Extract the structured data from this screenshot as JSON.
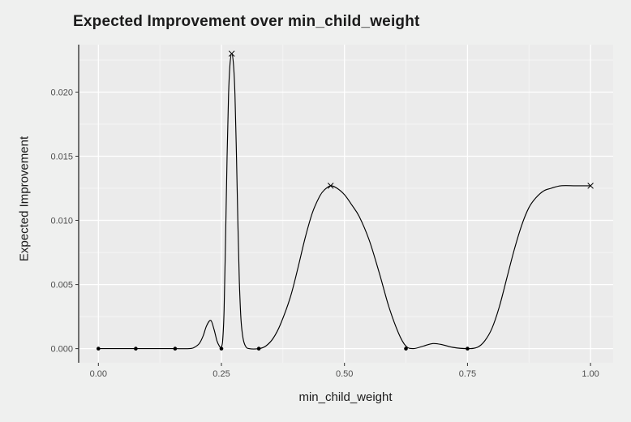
{
  "chart_data": {
    "type": "line",
    "title": "Expected Improvement over min_child_weight",
    "xlabel": "min_child_weight",
    "ylabel": "Expected Improvement",
    "xlim": [
      -0.04,
      1.046
    ],
    "ylim": [
      -0.0011,
      0.0237
    ],
    "grid": "major+minor",
    "legend": "none",
    "x_ticks": {
      "values": [
        0,
        0.25,
        0.5,
        0.75,
        1
      ],
      "labels": [
        "0.00",
        "0.25",
        "0.50",
        "0.75",
        "1.00"
      ]
    },
    "y_ticks": {
      "values": [
        0,
        0.005,
        0.01,
        0.015,
        0.02
      ],
      "labels": [
        "0.000",
        "0.005",
        "0.010",
        "0.015",
        "0.020"
      ]
    },
    "series": [
      {
        "name": "expected-improvement-curve",
        "type": "line",
        "color": "#000000",
        "points": [
          [
            0,
            0
          ],
          [
            0.05,
            0
          ],
          [
            0.1,
            0
          ],
          [
            0.15,
            0
          ],
          [
            0.185,
            0
          ],
          [
            0.195,
            0.0001
          ],
          [
            0.205,
            0.0004
          ],
          [
            0.213,
            0.001
          ],
          [
            0.22,
            0.0018
          ],
          [
            0.2285,
            0.0022
          ],
          [
            0.235,
            0.0015
          ],
          [
            0.241,
            0.0006
          ],
          [
            0.246,
            0.0002
          ],
          [
            0.249,
            0.0001
          ],
          [
            0.2525,
            0.0006
          ],
          [
            0.2555,
            0.003
          ],
          [
            0.2585,
            0.0085
          ],
          [
            0.2615,
            0.015
          ],
          [
            0.2645,
            0.0198
          ],
          [
            0.2675,
            0.0222
          ],
          [
            0.271,
            0.023
          ],
          [
            0.2745,
            0.0222
          ],
          [
            0.2775,
            0.0198
          ],
          [
            0.2805,
            0.0152
          ],
          [
            0.2835,
            0.0098
          ],
          [
            0.2865,
            0.0052
          ],
          [
            0.29,
            0.0022
          ],
          [
            0.294,
            0.0008
          ],
          [
            0.299,
            0.0002
          ],
          [
            0.306,
            0
          ],
          [
            0.326,
            0
          ],
          [
            0.34,
            0.0002
          ],
          [
            0.355,
            0.0008
          ],
          [
            0.37,
            0.0019
          ],
          [
            0.39,
            0.004
          ],
          [
            0.405,
            0.0062
          ],
          [
            0.42,
            0.0086
          ],
          [
            0.435,
            0.0106
          ],
          [
            0.45,
            0.0119
          ],
          [
            0.46,
            0.0124
          ],
          [
            0.472,
            0.0127
          ],
          [
            0.485,
            0.0125
          ],
          [
            0.5,
            0.012
          ],
          [
            0.515,
            0.0112
          ],
          [
            0.53,
            0.0103
          ],
          [
            0.55,
            0.0085
          ],
          [
            0.57,
            0.006
          ],
          [
            0.59,
            0.0033
          ],
          [
            0.61,
            0.0012
          ],
          [
            0.625,
            0.0002
          ],
          [
            0.64,
            0
          ],
          [
            0.66,
            0.0002
          ],
          [
            0.68,
            0.0004
          ],
          [
            0.7,
            0.0003
          ],
          [
            0.72,
            0.0001
          ],
          [
            0.75,
            0
          ],
          [
            0.77,
            0.0001
          ],
          [
            0.785,
            0.0006
          ],
          [
            0.8,
            0.0016
          ],
          [
            0.815,
            0.0033
          ],
          [
            0.83,
            0.0055
          ],
          [
            0.845,
            0.0077
          ],
          [
            0.86,
            0.0096
          ],
          [
            0.875,
            0.011
          ],
          [
            0.89,
            0.0118
          ],
          [
            0.905,
            0.0123
          ],
          [
            0.92,
            0.0125
          ],
          [
            0.94,
            0.0127
          ],
          [
            0.97,
            0.0127
          ],
          [
            1,
            0.0127
          ]
        ]
      }
    ],
    "observed_points": {
      "marker": "dot",
      "color": "#000000",
      "points": [
        [
          0,
          0
        ],
        [
          0.076,
          0
        ],
        [
          0.156,
          0
        ],
        [
          0.25,
          0
        ],
        [
          0.326,
          0
        ],
        [
          0.625,
          0
        ],
        [
          0.75,
          0
        ]
      ]
    },
    "peak_markers": {
      "marker": "x",
      "color": "#000000",
      "points": [
        [
          0.271,
          0.023
        ],
        [
          0.472,
          0.0127
        ],
        [
          1,
          0.0127
        ]
      ]
    },
    "colors": {
      "page_bg": "#eff0ef",
      "panel_bg": "#ebebeb",
      "grid_major": "#ffffff",
      "grid_minor": "#ffffff",
      "axis_line": "#1a1a1a",
      "tick_mark": "#333333",
      "tick_text": "#4d4d4d",
      "title_text": "#1b1b1b"
    }
  }
}
